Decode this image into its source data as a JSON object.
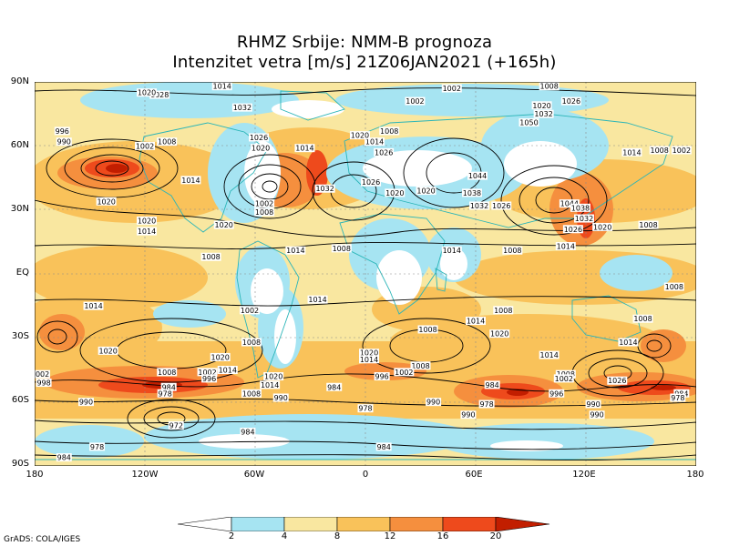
{
  "title": {
    "line1": "RHMZ Srbije: NMM-B prognoza",
    "line2": "Intenzitet vetra [m/s] 21Z06JAN2021 (+165h)"
  },
  "axes": {
    "y_labels": [
      "90N",
      "60N",
      "30N",
      "EQ",
      "30S",
      "60S",
      "90S"
    ],
    "x_labels": [
      "180",
      "120W",
      "60W",
      "0",
      "60E",
      "120E",
      "180"
    ]
  },
  "colorbar": {
    "ticks": [
      "2",
      "4",
      "8",
      "12",
      "16",
      "20"
    ],
    "colors": [
      "#ffffff",
      "#a6e4f2",
      "#f9e7a0",
      "#f9c25a",
      "#f58f3e",
      "#ee4a1c",
      "#c21e00"
    ]
  },
  "credit": "GrADS: COLA/IGES",
  "pressure_labels": [
    {
      "text": "1028",
      "lon": -112,
      "lat": 84
    },
    {
      "text": "1020",
      "lon": -119,
      "lat": 85
    },
    {
      "text": "1014",
      "lon": -78,
      "lat": 88
    },
    {
      "text": "1032",
      "lon": -67,
      "lat": 78
    },
    {
      "text": "1002",
      "lon": 27,
      "lat": 81
    },
    {
      "text": "1002",
      "lon": 47,
      "lat": 87
    },
    {
      "text": "1008",
      "lon": 100,
      "lat": 88
    },
    {
      "text": "1026",
      "lon": 112,
      "lat": 81
    },
    {
      "text": "1020",
      "lon": 96,
      "lat": 79
    },
    {
      "text": "1032",
      "lon": 97,
      "lat": 75
    },
    {
      "text": "996",
      "lon": -165,
      "lat": 67
    },
    {
      "text": "990",
      "lon": -164,
      "lat": 62
    },
    {
      "text": "1002",
      "lon": -120,
      "lat": 60
    },
    {
      "text": "1008",
      "lon": -108,
      "lat": 62
    },
    {
      "text": "1008",
      "lon": 13,
      "lat": 67
    },
    {
      "text": "1014",
      "lon": 5,
      "lat": 62
    },
    {
      "text": "1020",
      "lon": -3,
      "lat": 65
    },
    {
      "text": "1026",
      "lon": -58,
      "lat": 64
    },
    {
      "text": "1020",
      "lon": -57,
      "lat": 59
    },
    {
      "text": "1014",
      "lon": -33,
      "lat": 59
    },
    {
      "text": "1026",
      "lon": 10,
      "lat": 57
    },
    {
      "text": "1050",
      "lon": 89,
      "lat": 71
    },
    {
      "text": "1014",
      "lon": 145,
      "lat": 57
    },
    {
      "text": "1008",
      "lon": 160,
      "lat": 58
    },
    {
      "text": "1002",
      "lon": 172,
      "lat": 58
    },
    {
      "text": "1014",
      "lon": -95,
      "lat": 44
    },
    {
      "text": "1020",
      "lon": -141,
      "lat": 34
    },
    {
      "text": "1002",
      "lon": -55,
      "lat": 33
    },
    {
      "text": "1008",
      "lon": -55,
      "lat": 29
    },
    {
      "text": "1032",
      "lon": -22,
      "lat": 40
    },
    {
      "text": "1026",
      "lon": 3,
      "lat": 43
    },
    {
      "text": "1020",
      "lon": 16,
      "lat": 38
    },
    {
      "text": "1020",
      "lon": 33,
      "lat": 39
    },
    {
      "text": "1044",
      "lon": 61,
      "lat": 46
    },
    {
      "text": "1038",
      "lon": 58,
      "lat": 38
    },
    {
      "text": "1032",
      "lon": 62,
      "lat": 32
    },
    {
      "text": "1026",
      "lon": 74,
      "lat": 32
    },
    {
      "text": "1044",
      "lon": 111,
      "lat": 33
    },
    {
      "text": "1038",
      "lon": 117,
      "lat": 31
    },
    {
      "text": "1032",
      "lon": 119,
      "lat": 26
    },
    {
      "text": "1026",
      "lon": 113,
      "lat": 21
    },
    {
      "text": "1020",
      "lon": 129,
      "lat": 22
    },
    {
      "text": "1008",
      "lon": 154,
      "lat": 23
    },
    {
      "text": "1020",
      "lon": -119,
      "lat": 25
    },
    {
      "text": "1014",
      "lon": -119,
      "lat": 20
    },
    {
      "text": "1020",
      "lon": -77,
      "lat": 23
    },
    {
      "text": "1014",
      "lon": -38,
      "lat": 11
    },
    {
      "text": "1008",
      "lon": -13,
      "lat": 12
    },
    {
      "text": "1014",
      "lon": 47,
      "lat": 11
    },
    {
      "text": "1008",
      "lon": 80,
      "lat": 11
    },
    {
      "text": "1014",
      "lon": 109,
      "lat": 13
    },
    {
      "text": "1008",
      "lon": -84,
      "lat": 8
    },
    {
      "text": "1008",
      "lon": 168,
      "lat": -6
    },
    {
      "text": "1014",
      "lon": -148,
      "lat": -15
    },
    {
      "text": "1014",
      "lon": -26,
      "lat": -12
    },
    {
      "text": "1002",
      "lon": -63,
      "lat": -17
    },
    {
      "text": "1008",
      "lon": 75,
      "lat": -17
    },
    {
      "text": "1014",
      "lon": 60,
      "lat": -22
    },
    {
      "text": "1008",
      "lon": 151,
      "lat": -21
    },
    {
      "text": "1008",
      "lon": -62,
      "lat": -32
    },
    {
      "text": "1008",
      "lon": 34,
      "lat": -26
    },
    {
      "text": "1020",
      "lon": 73,
      "lat": -28
    },
    {
      "text": "1020",
      "lon": -140,
      "lat": -36
    },
    {
      "text": "1014",
      "lon": 143,
      "lat": -32
    },
    {
      "text": "1020",
      "lon": 2,
      "lat": -37
    },
    {
      "text": "1014",
      "lon": 2,
      "lat": -40
    },
    {
      "text": "1014",
      "lon": 100,
      "lat": -38
    },
    {
      "text": "1020",
      "lon": -79,
      "lat": -39
    },
    {
      "text": "1002",
      "lon": -86,
      "lat": -46
    },
    {
      "text": "1014",
      "lon": -75,
      "lat": -45
    },
    {
      "text": "1008",
      "lon": -108,
      "lat": -46
    },
    {
      "text": "1002",
      "lon": -177,
      "lat": -47
    },
    {
      "text": "998",
      "lon": -175,
      "lat": -51
    },
    {
      "text": "1008",
      "lon": 30,
      "lat": -43
    },
    {
      "text": "1002",
      "lon": 21,
      "lat": -46
    },
    {
      "text": "996",
      "lon": 9,
      "lat": -48
    },
    {
      "text": "1020",
      "lon": -50,
      "lat": -48
    },
    {
      "text": "1014",
      "lon": -52,
      "lat": -52
    },
    {
      "text": "996",
      "lon": -85,
      "lat": -49
    },
    {
      "text": "984",
      "lon": -107,
      "lat": -53
    },
    {
      "text": "978",
      "lon": -109,
      "lat": -56
    },
    {
      "text": "1008",
      "lon": -62,
      "lat": -56
    },
    {
      "text": "990",
      "lon": -46,
      "lat": -58
    },
    {
      "text": "984",
      "lon": -17,
      "lat": -53
    },
    {
      "text": "990",
      "lon": -152,
      "lat": -60
    },
    {
      "text": "1008",
      "lon": 109,
      "lat": -47
    },
    {
      "text": "1002",
      "lon": 108,
      "lat": -49
    },
    {
      "text": "1026",
      "lon": 137,
      "lat": -50
    },
    {
      "text": "984",
      "lon": 69,
      "lat": -52
    },
    {
      "text": "996",
      "lon": 104,
      "lat": -56
    },
    {
      "text": "990",
      "lon": 124,
      "lat": -61
    },
    {
      "text": "984",
      "lon": 172,
      "lat": -56
    },
    {
      "text": "978",
      "lon": 170,
      "lat": -58
    },
    {
      "text": "990",
      "lon": 37,
      "lat": -60
    },
    {
      "text": "978",
      "lon": 66,
      "lat": -61
    },
    {
      "text": "978",
      "lon": 0,
      "lat": -63
    },
    {
      "text": "990",
      "lon": 56,
      "lat": -66
    },
    {
      "text": "990",
      "lon": 126,
      "lat": -66
    },
    {
      "text": "972",
      "lon": -103,
      "lat": -71
    },
    {
      "text": "984",
      "lon": -64,
      "lat": -74
    },
    {
      "text": "978",
      "lon": -146,
      "lat": -81
    },
    {
      "text": "984",
      "lon": -164,
      "lat": -86
    },
    {
      "text": "984",
      "lon": 10,
      "lat": -81
    }
  ]
}
